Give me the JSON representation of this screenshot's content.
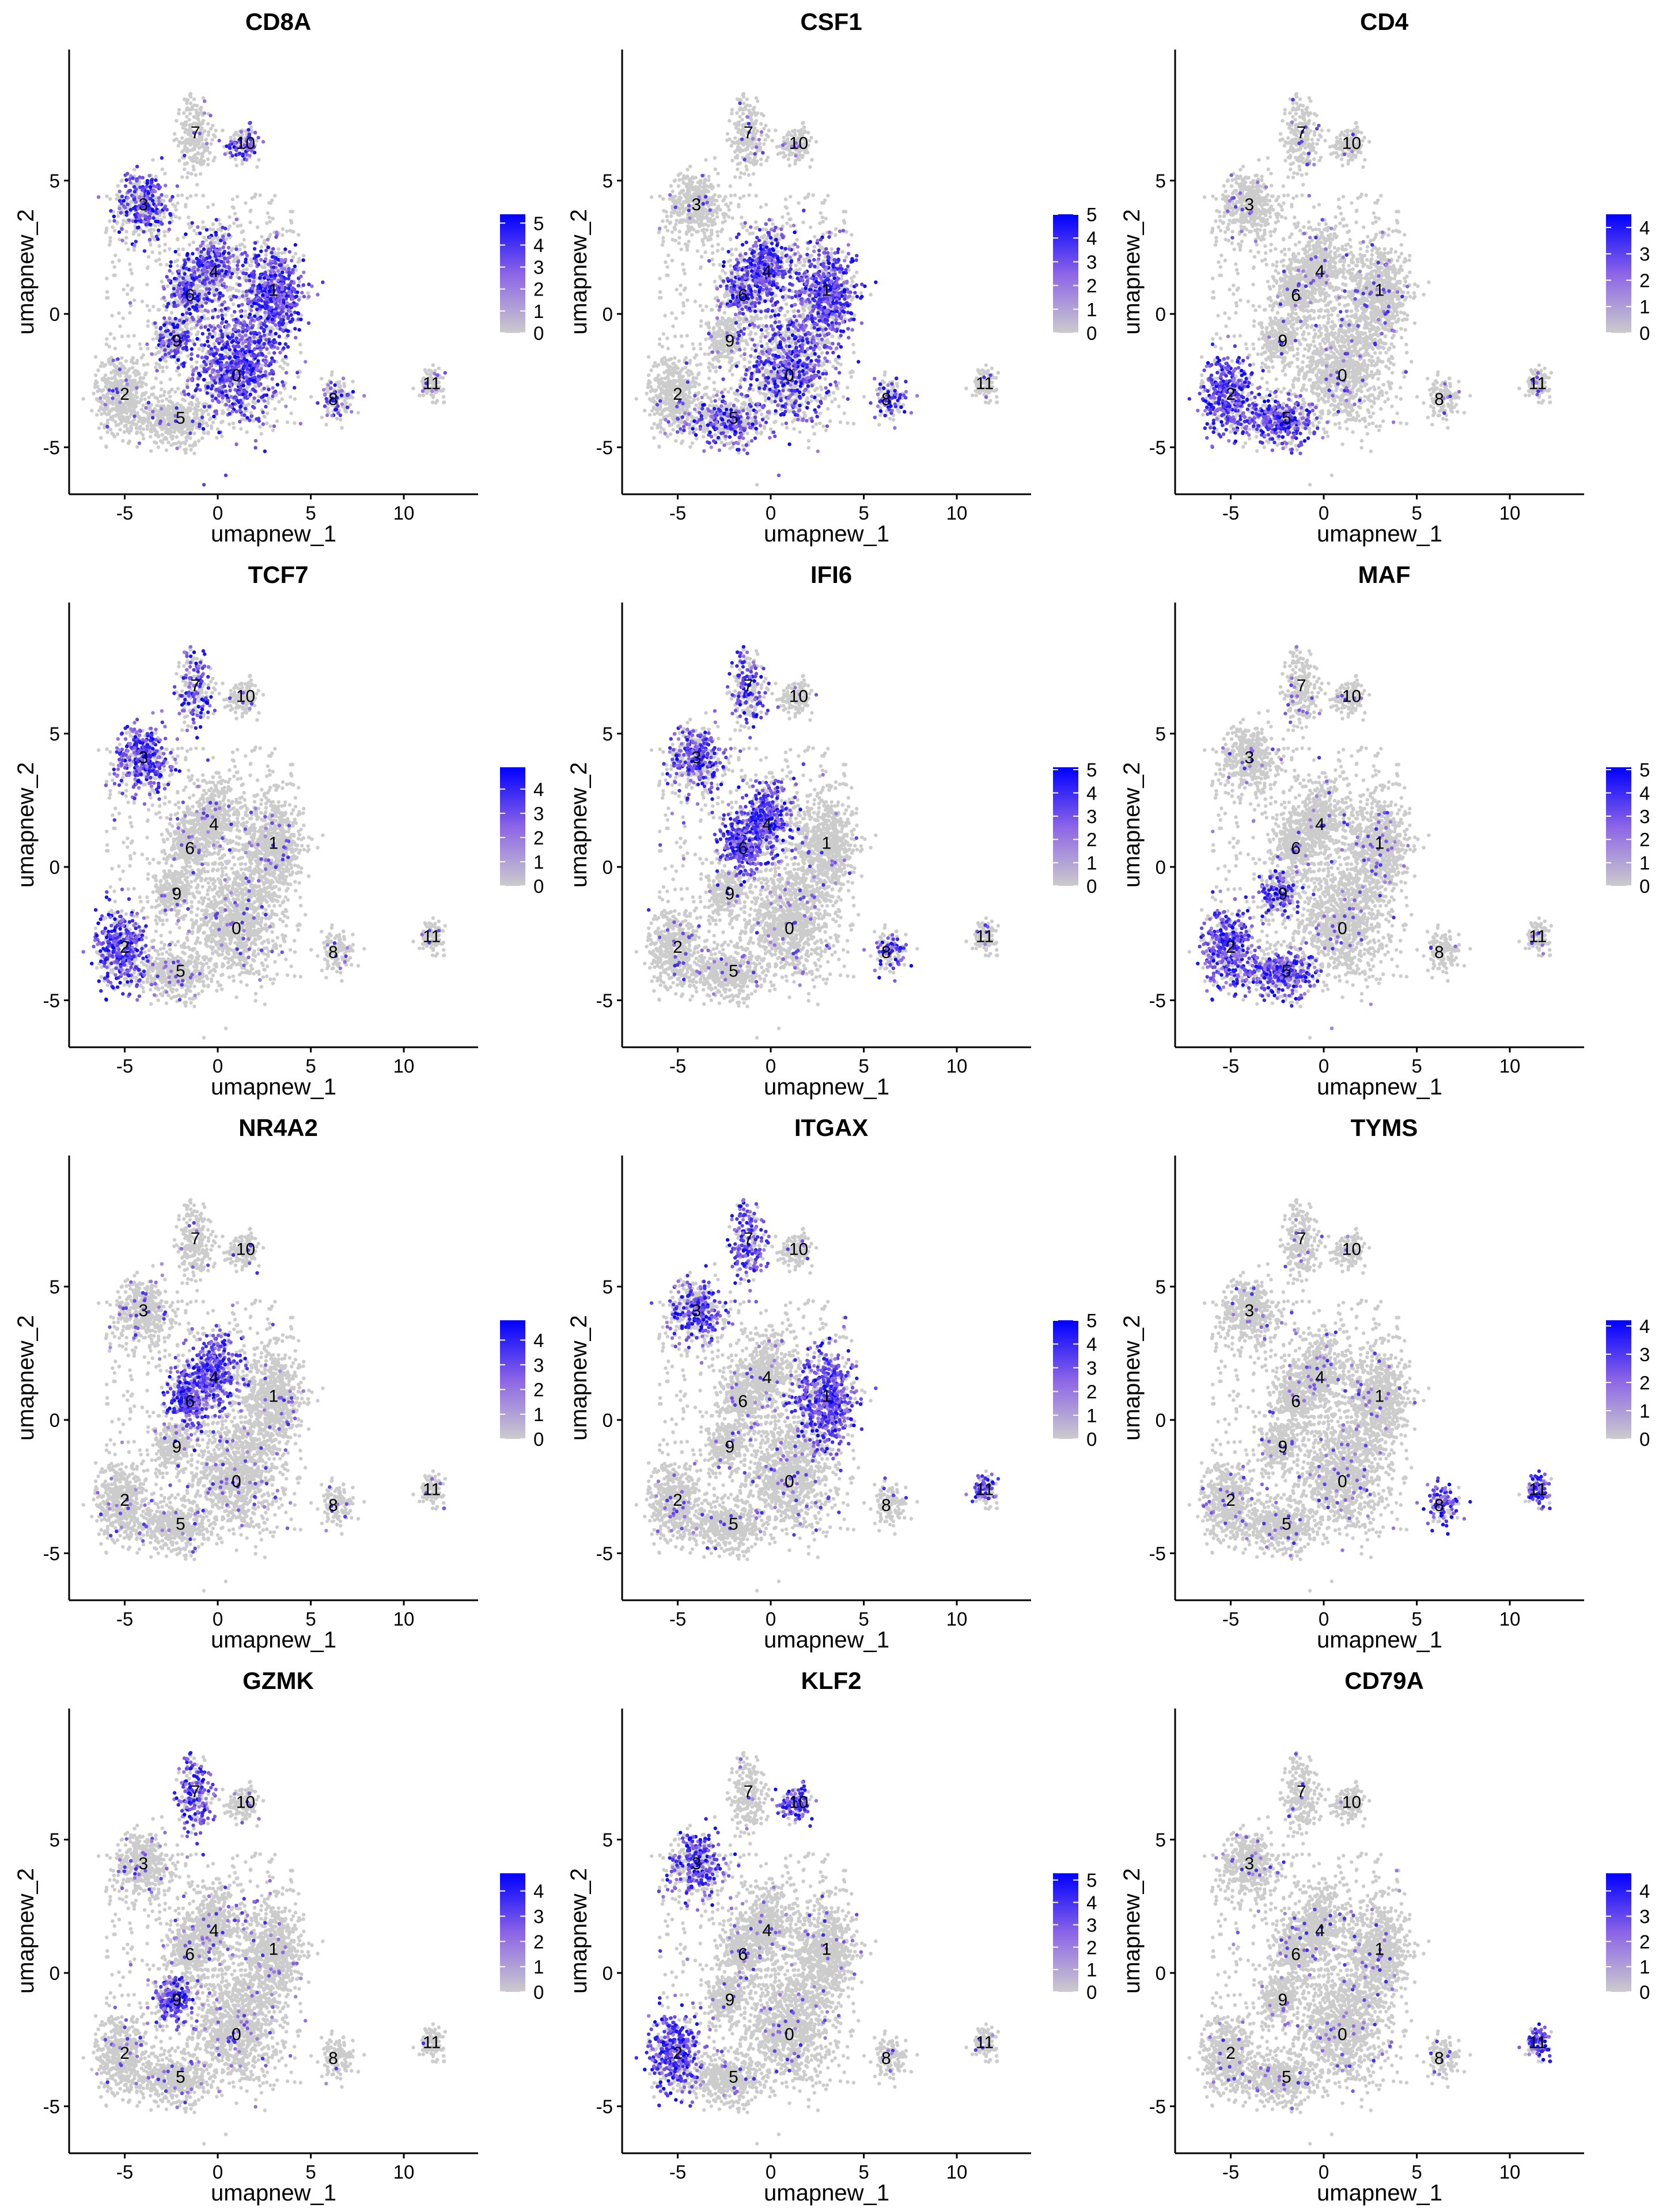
{
  "chart_data": {
    "type": "scatter",
    "subtype": "feature-plot-grid",
    "xlabel": "umapnew_1",
    "ylabel": "umapnew_2",
    "xlim": [
      -8,
      14
    ],
    "ylim": [
      -6.9,
      9.5
    ],
    "x_ticks": [
      -5,
      0,
      5,
      10
    ],
    "y_ticks": [
      -5,
      0,
      5
    ],
    "color_low": "#cccccc",
    "color_high": "#0000ff",
    "legend_position": "right",
    "clusters": [
      {
        "label": "0",
        "x": 1.0,
        "y": -2.3
      },
      {
        "label": "1",
        "x": 3.0,
        "y": 0.9
      },
      {
        "label": "2",
        "x": -5.0,
        "y": -3.0
      },
      {
        "label": "3",
        "x": -4.0,
        "y": 4.1
      },
      {
        "label": "4",
        "x": -0.2,
        "y": 1.6
      },
      {
        "label": "5",
        "x": -2.0,
        "y": -3.9
      },
      {
        "label": "6",
        "x": -1.5,
        "y": 0.7
      },
      {
        "label": "7",
        "x": -1.2,
        "y": 6.8
      },
      {
        "label": "8",
        "x": 6.2,
        "y": -3.2
      },
      {
        "label": "9",
        "x": -2.2,
        "y": -1.0
      },
      {
        "label": "10",
        "x": 1.5,
        "y": 6.4
      },
      {
        "label": "11",
        "x": 11.5,
        "y": -2.6
      }
    ],
    "panels": [
      {
        "gene": "CD8A",
        "legend_max": 5.4,
        "legend_ticks": [
          0,
          1,
          2,
          3,
          4,
          5
        ],
        "high_clusters": [
          "0",
          "1",
          "4",
          "6",
          "9",
          "8",
          "3",
          "10"
        ]
      },
      {
        "gene": "CSF1",
        "legend_max": 5.0,
        "legend_ticks": [
          0,
          1,
          2,
          3,
          4,
          5
        ],
        "high_clusters": [
          "1",
          "4",
          "6",
          "0",
          "5",
          "8"
        ]
      },
      {
        "gene": "CD4",
        "legend_max": 4.5,
        "legend_ticks": [
          0,
          1,
          2,
          3,
          4
        ],
        "high_clusters": [
          "2",
          "5"
        ]
      },
      {
        "gene": "TCF7",
        "legend_max": 4.9,
        "legend_ticks": [
          0,
          1,
          2,
          3,
          4
        ],
        "high_clusters": [
          "3",
          "2",
          "7"
        ]
      },
      {
        "gene": "IFI6",
        "legend_max": 5.1,
        "legend_ticks": [
          0,
          1,
          2,
          3,
          4,
          5
        ],
        "high_clusters": [
          "4",
          "6",
          "7",
          "8",
          "3"
        ]
      },
      {
        "gene": "MAF",
        "legend_max": 5.1,
        "legend_ticks": [
          0,
          1,
          2,
          3,
          4,
          5
        ],
        "high_clusters": [
          "2",
          "5",
          "9"
        ]
      },
      {
        "gene": "NR4A2",
        "legend_max": 4.8,
        "legend_ticks": [
          0,
          1,
          2,
          3,
          4
        ],
        "high_clusters": [
          "6",
          "4"
        ]
      },
      {
        "gene": "ITGAX",
        "legend_max": 5.0,
        "legend_ticks": [
          0,
          1,
          2,
          3,
          4,
          5
        ],
        "high_clusters": [
          "7",
          "1",
          "3",
          "11"
        ]
      },
      {
        "gene": "TYMS",
        "legend_max": 4.2,
        "legend_ticks": [
          0,
          1,
          2,
          3,
          4
        ],
        "high_clusters": [
          "8",
          "11"
        ]
      },
      {
        "gene": "GZMK",
        "legend_max": 4.7,
        "legend_ticks": [
          0,
          1,
          2,
          3,
          4
        ],
        "high_clusters": [
          "9",
          "7"
        ]
      },
      {
        "gene": "KLF2",
        "legend_max": 5.3,
        "legend_ticks": [
          0,
          1,
          2,
          3,
          4,
          5
        ],
        "high_clusters": [
          "10",
          "2",
          "3"
        ]
      },
      {
        "gene": "CD79A",
        "legend_max": 4.7,
        "legend_ticks": [
          0,
          1,
          2,
          3,
          4
        ],
        "high_clusters": [
          "11"
        ]
      }
    ]
  }
}
